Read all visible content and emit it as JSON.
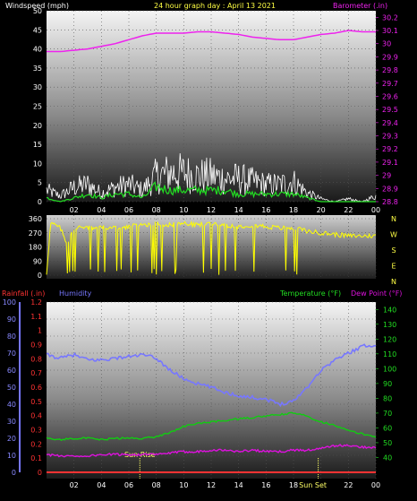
{
  "header": {
    "wind_label": "Windspeed (mph)",
    "title": "24 hour graph day : April 13 2021",
    "baro_label": "Barometer (.in)"
  },
  "bottom_header": {
    "rain_label": "Rainfall (.in)",
    "hum_label": "Humidity",
    "temp_label": "Temperature (°F)",
    "dew_label": "Dew Point (°F)"
  },
  "compass": [
    "N",
    "W",
    "S",
    "E",
    "N"
  ],
  "colors": {
    "wind_avg": "#22dd22",
    "wind_gust": "#ffffff",
    "barometer": "#ee22ee",
    "direction": "#ffff00",
    "humidity": "#7777ff",
    "temperature": "#11cc11",
    "dewpoint": "#dd11dd",
    "rainfall": "#ff3333",
    "sun_marker": "#ffff66"
  },
  "chart_data": [
    {
      "type": "line",
      "x_ticks": [
        "02",
        "04",
        "06",
        "08",
        "10",
        "12",
        "14",
        "16",
        "18",
        "20",
        "22",
        "00"
      ],
      "y_left_ticks": [
        0,
        5,
        10,
        15,
        20,
        25,
        30,
        35,
        40,
        45,
        50
      ],
      "ylim_left": [
        0,
        50
      ],
      "y_right_ticks": [
        "28.8",
        "28.9",
        "29",
        "29.1",
        "29.2",
        "29.3",
        "29.4",
        "29.5",
        "29.6",
        "29.7",
        "29.8",
        "29.9",
        "30",
        "30.1",
        "30.2"
      ],
      "ylim_right": [
        28.8,
        30.25
      ],
      "series": [
        {
          "role": "barometer",
          "x": [
            0,
            1,
            2,
            3,
            4,
            5,
            6,
            7,
            8,
            9,
            10,
            11,
            12,
            13,
            14,
            15,
            16,
            17,
            18,
            19,
            20,
            21,
            22,
            23,
            24
          ],
          "values": [
            29.94,
            29.94,
            29.95,
            29.96,
            29.98,
            30.0,
            30.03,
            30.06,
            30.08,
            30.08,
            30.08,
            30.09,
            30.09,
            30.08,
            30.07,
            30.05,
            30.04,
            30.03,
            30.03,
            30.05,
            30.07,
            30.08,
            30.1,
            30.09,
            30.09
          ]
        },
        {
          "role": "wind_gust",
          "x": [
            0,
            1,
            2,
            3,
            4,
            5,
            6,
            7,
            8,
            9,
            10,
            11,
            12,
            13,
            14,
            15,
            16,
            17,
            18,
            19,
            20,
            21,
            22,
            23,
            24
          ],
          "values": [
            4,
            2,
            5,
            6,
            3,
            5,
            6,
            4,
            9,
            10,
            10,
            9,
            9,
            8,
            8,
            7,
            6,
            6,
            7,
            3,
            1,
            0,
            1,
            0,
            2
          ]
        },
        {
          "role": "wind_avg",
          "x": [
            0,
            1,
            2,
            3,
            4,
            5,
            6,
            7,
            8,
            9,
            10,
            11,
            12,
            13,
            14,
            15,
            16,
            17,
            18,
            19,
            20,
            21,
            22,
            23,
            24
          ],
          "values": [
            1,
            0,
            1,
            2,
            1,
            2,
            2,
            1,
            4,
            3,
            3,
            3,
            3,
            3,
            2,
            2,
            2,
            2,
            2,
            1,
            0,
            0,
            0,
            0,
            0
          ]
        }
      ]
    },
    {
      "type": "line",
      "y_ticks": [
        0,
        90,
        180,
        270,
        360
      ],
      "ylim": [
        0,
        360
      ],
      "series": [
        {
          "role": "direction",
          "x": [
            0,
            0.3,
            0.6,
            1,
            1.5,
            2,
            2.5,
            3,
            4,
            5,
            6,
            7,
            8,
            9,
            10,
            11,
            12,
            13,
            14,
            15,
            16,
            17,
            18,
            19,
            20,
            21,
            22,
            23,
            24
          ],
          "values": [
            10,
            330,
            320,
            300,
            200,
            300,
            310,
            300,
            310,
            300,
            310,
            320,
            330,
            320,
            330,
            320,
            330,
            320,
            310,
            320,
            310,
            300,
            300,
            280,
            270,
            260,
            250,
            250,
            250
          ]
        }
      ]
    },
    {
      "type": "line",
      "x_ticks": [
        "02",
        "04",
        "06",
        "08",
        "10",
        "12",
        "14",
        "16",
        "18",
        "Sun Set",
        "22",
        "00"
      ],
      "y_left_ticks": [
        0,
        10,
        20,
        30,
        40,
        50,
        60,
        70,
        80,
        90,
        100
      ],
      "ylim_left": [
        0,
        100
      ],
      "y_rain_ticks": [
        "0",
        "0.1",
        "0.2",
        "0.3",
        "0.4",
        "0.5",
        "0.6",
        "0.7",
        "0.8",
        "0.9",
        "1",
        "1.1",
        "1.2"
      ],
      "ylim_rain": [
        0,
        1.2
      ],
      "y_right_ticks": [
        40,
        50,
        60,
        70,
        80,
        90,
        100,
        110,
        120,
        130,
        140
      ],
      "ylim_right": [
        30,
        145
      ],
      "annotations": [
        {
          "label": "Sun Rise",
          "x": 6.8
        },
        {
          "label": "Sun Set",
          "x": 19.8
        }
      ],
      "series": [
        {
          "role": "humidity",
          "x": [
            0,
            1,
            2,
            3,
            4,
            5,
            6,
            7,
            8,
            9,
            10,
            11,
            12,
            13,
            14,
            15,
            16,
            17,
            18,
            19,
            20,
            21,
            22,
            23,
            24
          ],
          "values": [
            69,
            67,
            69,
            66,
            66,
            67,
            68,
            69,
            67,
            60,
            55,
            52,
            50,
            47,
            45,
            44,
            43,
            40,
            42,
            50,
            60,
            66,
            70,
            74,
            75
          ]
        },
        {
          "role": "temperature",
          "x": [
            0,
            1,
            2,
            3,
            4,
            5,
            6,
            7,
            8,
            9,
            10,
            11,
            12,
            13,
            14,
            15,
            16,
            17,
            18,
            19,
            20,
            21,
            22,
            23,
            24
          ],
          "values": [
            53,
            52,
            53,
            53,
            52,
            53,
            53,
            53,
            54,
            57,
            61,
            63,
            64,
            65,
            66,
            67,
            68,
            69,
            70,
            68,
            64,
            62,
            58,
            56,
            54
          ]
        },
        {
          "role": "dewpoint",
          "x": [
            0,
            1,
            2,
            3,
            4,
            5,
            6,
            7,
            8,
            9,
            10,
            11,
            12,
            13,
            14,
            15,
            16,
            17,
            18,
            19,
            20,
            21,
            22,
            23,
            24
          ],
          "values": [
            42,
            41,
            41,
            41,
            42,
            42,
            42,
            42,
            42,
            43,
            44,
            44,
            45,
            45,
            44,
            45,
            44,
            44,
            45,
            45,
            46,
            48,
            48,
            47,
            47
          ]
        },
        {
          "role": "rainfall",
          "x": [
            0,
            24
          ],
          "values": [
            0,
            0
          ]
        }
      ]
    }
  ]
}
